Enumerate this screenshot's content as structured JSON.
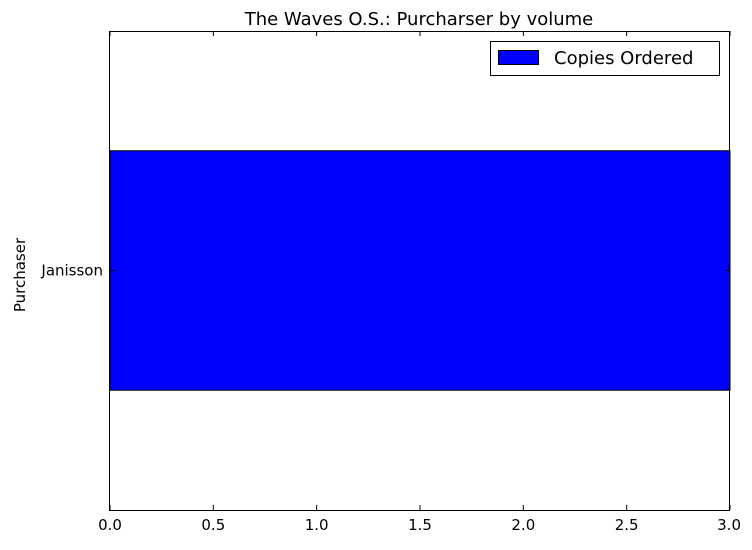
{
  "chart_data": {
    "type": "bar",
    "orientation": "horizontal",
    "title": "The Waves O.S.: Purcharser by volume",
    "xlabel": "",
    "ylabel": "Purchaser",
    "categories": [
      "Janisson"
    ],
    "series": [
      {
        "name": "Copies Ordered",
        "values": [
          3.0
        ],
        "color": "#0000ff"
      }
    ],
    "xlim": [
      0,
      3.0
    ],
    "x_ticks": [
      "0.0",
      "0.5",
      "1.0",
      "1.5",
      "2.0",
      "2.5",
      "3.0"
    ],
    "grid": false,
    "legend_position": "top-right"
  }
}
